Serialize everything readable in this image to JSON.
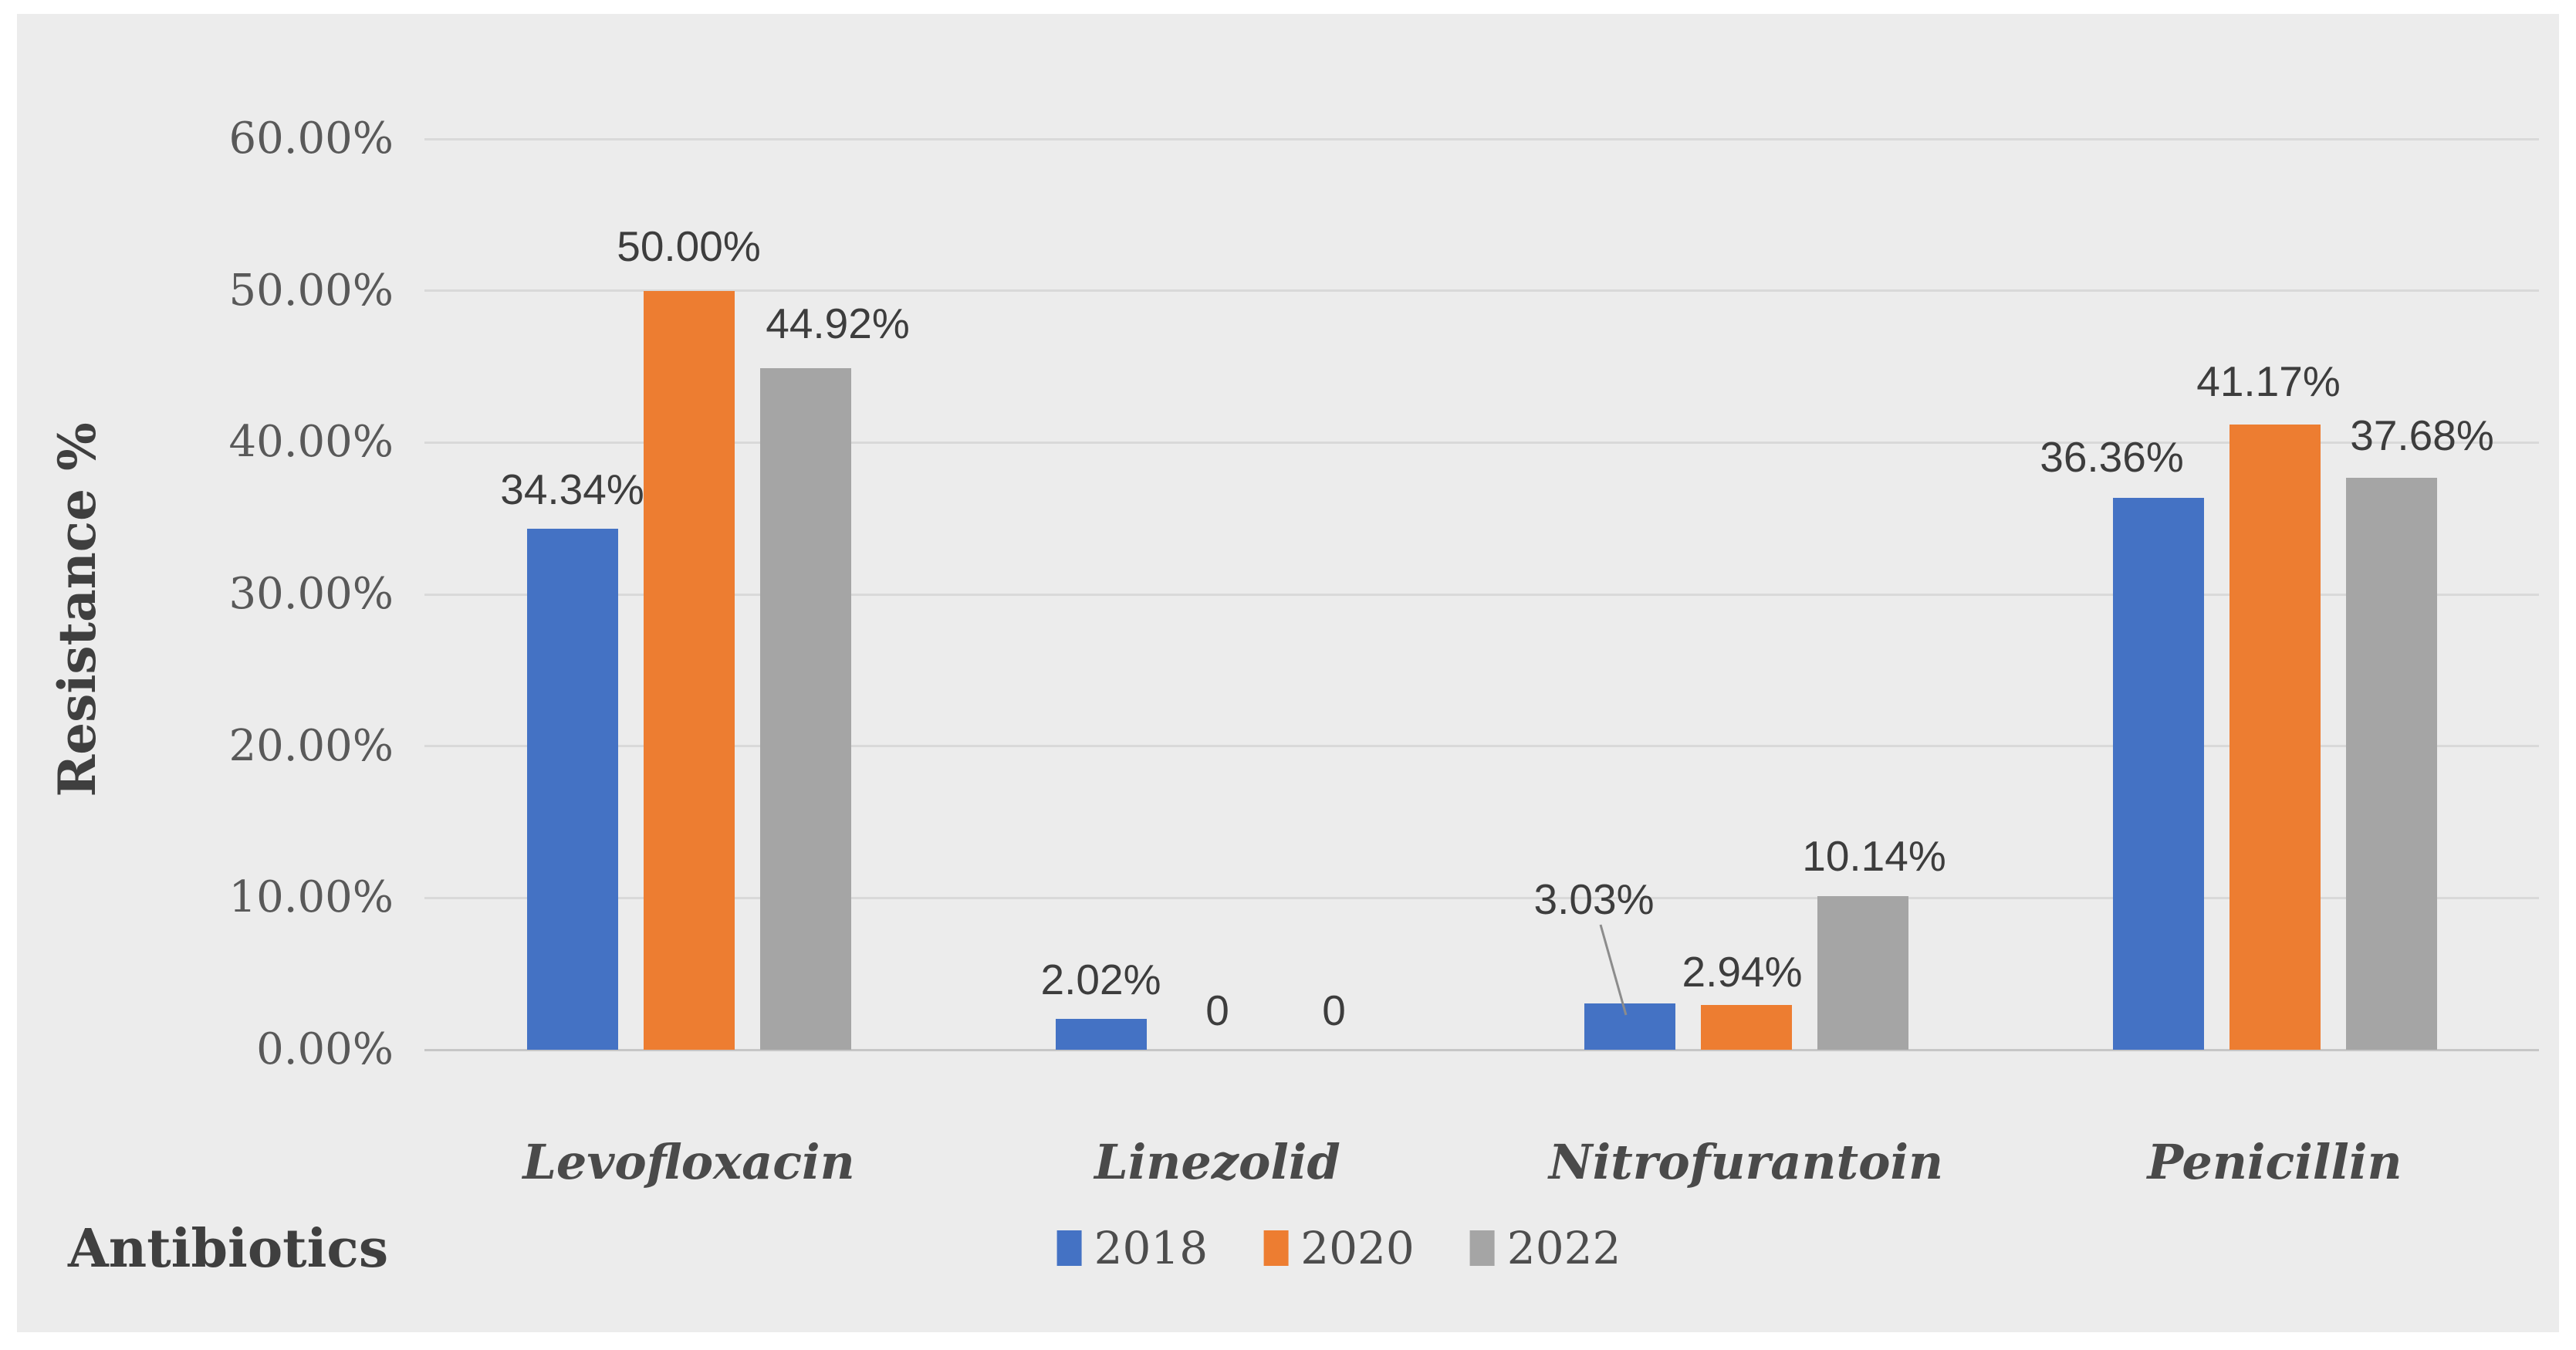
{
  "chart_data": {
    "type": "bar",
    "title": "",
    "xlabel": "Antibiotics",
    "ylabel": "Resistance %",
    "ylim": [
      0,
      60
    ],
    "grid": true,
    "legend_position": "bottom",
    "yticks": [
      {
        "value": 0,
        "label": "0.00%"
      },
      {
        "value": 10,
        "label": "10.00%"
      },
      {
        "value": 20,
        "label": "20.00%"
      },
      {
        "value": 30,
        "label": "30.00%"
      },
      {
        "value": 40,
        "label": "40.00%"
      },
      {
        "value": 50,
        "label": "50.00%"
      },
      {
        "value": 60,
        "label": "60.00%"
      }
    ],
    "categories": [
      "Levofloxacin",
      "Linezolid",
      "Nitrofurantoin",
      "Penicillin"
    ],
    "series": [
      {
        "name": "2018",
        "color": "#4472C4",
        "values": [
          34.34,
          2.02,
          3.03,
          36.36
        ],
        "labels": [
          "34.34%",
          "2.02%",
          "3.03%",
          "36.36%"
        ],
        "label_offsets": [
          {
            "dx": 0,
            "dy": 20
          },
          {
            "dx": 0,
            "dy": 20
          },
          {
            "dx": -46,
            "dy": 104
          },
          {
            "dx": -60,
            "dy": 22
          }
        ]
      },
      {
        "name": "2020",
        "color": "#ED7D31",
        "values": [
          50.0,
          0,
          2.94,
          41.17
        ],
        "labels": [
          "50.00%",
          "0",
          "2.94%",
          "41.17%"
        ],
        "label_offsets": [
          {
            "dx": 0,
            "dy": 27
          },
          {
            "dx": 0,
            "dy": 20
          },
          {
            "dx": -5,
            "dy": 12
          },
          {
            "dx": -8,
            "dy": 25
          }
        ]
      },
      {
        "name": "2022",
        "color": "#A5A5A5",
        "values": [
          44.92,
          0,
          10.14,
          37.68
        ],
        "labels": [
          "44.92%",
          "0",
          "10.14%",
          "37.68%"
        ],
        "label_offsets": [
          {
            "dx": 42,
            "dy": 27
          },
          {
            "dx": 0,
            "dy": 20
          },
          {
            "dx": 15,
            "dy": 21
          },
          {
            "dx": 40,
            "dy": 24
          }
        ]
      }
    ],
    "annotations": [
      {
        "type": "leader-line",
        "for_label": "3.03%",
        "x1": 1524,
        "y1": 1018,
        "x2": 1557,
        "y2": 1135
      }
    ]
  },
  "colors": {
    "page_background": "#FFFFFF",
    "panel_background": "#ECECEC",
    "gridline": "#D9D9D9",
    "axis_line": "#C6C6C6",
    "leader_line": "#8C8C8C",
    "tick_text": "#595959",
    "data_label_text": "#3D3D3D",
    "category_text": "#4A4A4A",
    "axis_title_text": "#3F3F3F"
  }
}
